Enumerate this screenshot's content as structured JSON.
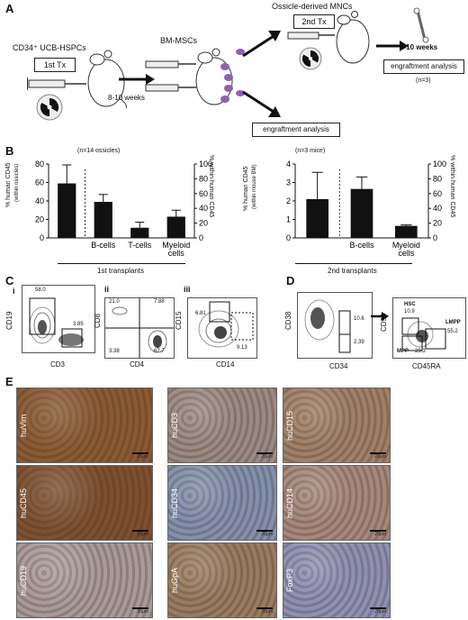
{
  "panels": {
    "a": "A",
    "b": "B",
    "c": "C",
    "d": "D",
    "e": "E"
  },
  "a": {
    "donor_label": "CD34⁺ UCB-HSPCs",
    "first_tx": "1st Tx",
    "weeks1": "8-10 weeks",
    "msc_label": "BM-MSCs",
    "ossicle_label": "Ossicle-derived MNCs",
    "second_tx": "2nd Tx",
    "weeks2": "8-10 weeks",
    "engraft1": "engraftment analysis",
    "engraft2": "engraftment analysis",
    "n": "(n=3)"
  },
  "b": {
    "left_n": "(n=14 ossicles)",
    "right_n": "(n=3 mice)",
    "left_caption": "1st transplants",
    "right_caption": "2nd transplants",
    "left_ylab1": "% human CD45",
    "left_ylab2": "(within ossicles)",
    "left_ylab_r": "% within human CD45",
    "right_ylab1": "% human CD45",
    "right_ylab2": "(within mouse BM)",
    "right_ylab_r": "% within human CD45"
  },
  "chart_data": [
    {
      "type": "bar",
      "categories": [
        "",
        "B-cells",
        "T-cells",
        "Myeloid cells"
      ],
      "values": [
        59,
        39,
        11,
        23
      ],
      "errors": [
        20,
        8,
        6,
        7
      ],
      "ylim": [
        0,
        80
      ],
      "yticks": [
        0,
        20,
        40,
        60,
        80
      ],
      "ylim_right": [
        0,
        100
      ],
      "yticks_right": [
        0,
        20,
        40,
        60,
        80,
        100
      ]
    },
    {
      "type": "bar",
      "categories": [
        "",
        "B-cells",
        "Myeloid cells"
      ],
      "values": [
        2.1,
        2.65,
        0.65
      ],
      "errors": [
        1.45,
        0.65,
        0.05
      ],
      "ylim": [
        0,
        4
      ],
      "yticks": [
        0,
        1,
        2,
        3,
        4
      ],
      "ylim_right": [
        0,
        100
      ],
      "yticks_right": [
        0,
        20,
        40,
        60,
        80,
        100
      ]
    }
  ],
  "c": {
    "i": {
      "sub": "i",
      "ylab": "CD19",
      "xlab": "CD3",
      "v1": "58.0",
      "v2": "3.85"
    },
    "ii": {
      "sub": "ii",
      "ylab": "CD8",
      "xlab": "CD4",
      "v1": "21.0",
      "v2": "7.88",
      "v3": "3.38",
      "v4": "67.7"
    },
    "iii": {
      "sub": "iii",
      "ylab": "CD15",
      "xlab": "CD14",
      "v1": "6.81",
      "v2": "9.13"
    }
  },
  "d": {
    "ylab1": "CD38",
    "xlab1": "CD34",
    "g1": "10.6",
    "g2": "2.39",
    "ylab2": "CD90",
    "xlab2": "CD45RA",
    "hsc": "HSC",
    "hsc_v": "10.9",
    "lmpp": "LMPP",
    "lmpp_v": "55.2",
    "mpp": "MPP",
    "mpp_v": "29.3"
  },
  "e": {
    "tiles": [
      {
        "label": "huVim",
        "scale": "20μm",
        "bg": "#8a5a32"
      },
      {
        "label": "huCD3",
        "scale": "20μm",
        "bg": "#9a8a84"
      },
      {
        "label": "huCD15",
        "scale": "20μm",
        "bg": "#a08068"
      },
      {
        "label": "huCD45",
        "scale": "20μm",
        "bg": "#7e5030"
      },
      {
        "label": "huCD34",
        "scale": "20μm",
        "bg": "#8290ae"
      },
      {
        "label": "huCD14",
        "scale": "20μm",
        "bg": "#a4887c"
      },
      {
        "label": "huCD19",
        "scale": "20μm",
        "bg": "#a89a9a"
      },
      {
        "label": "huGpA",
        "scale": "20μm",
        "bg": "#9a7c60"
      },
      {
        "label": "FoxP3",
        "scale": "20μm",
        "bg": "#8e90b4"
      }
    ]
  }
}
